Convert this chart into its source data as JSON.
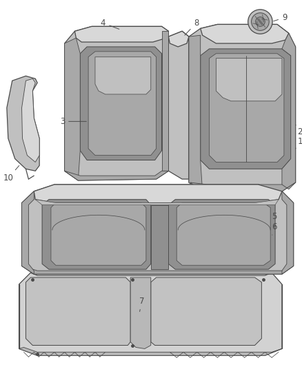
{
  "background_color": "#ffffff",
  "figure_width": 4.38,
  "figure_height": 5.33,
  "dpi": 100,
  "line_color": "#4a4a4a",
  "fill_light": "#d8d8d8",
  "fill_mid": "#c0c0c0",
  "fill_dark": "#a8a8a8",
  "fill_darker": "#909090",
  "label_fontsize": 8.5,
  "line_width": 0.9
}
